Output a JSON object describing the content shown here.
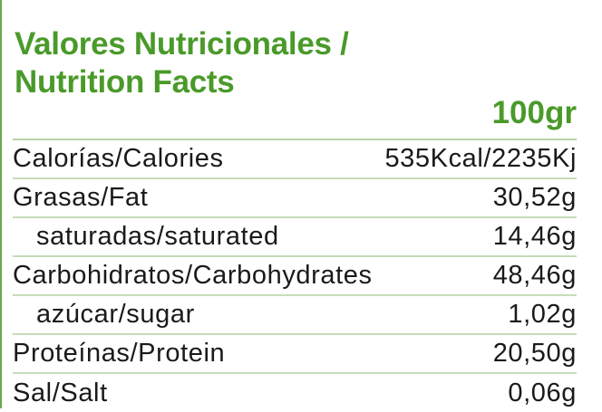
{
  "title_lines": [
    "Valores Nutricionales /",
    "Nutrition Facts"
  ],
  "per_amount": "100gr",
  "rows": [
    {
      "label": "Calorías/Calories",
      "value": "535Kcal/2235Kj"
    },
    {
      "label": "Grasas/Fat",
      "value": "30,52g"
    },
    {
      "label": "saturadas/saturated",
      "value": "14,46g"
    },
    {
      "label": "Carbohidratos/Carbohydrates",
      "value": "48,46g"
    },
    {
      "label": "azúcar/sugar",
      "value": "1,02g"
    },
    {
      "label": "Proteínas/Protein",
      "value": "20,50g"
    },
    {
      "label": "Sal/Salt",
      "value": "0,06g"
    }
  ],
  "colors": {
    "title": "#4a9a2a",
    "divider": "#b7d3a6",
    "text": "#1a1a1a"
  }
}
